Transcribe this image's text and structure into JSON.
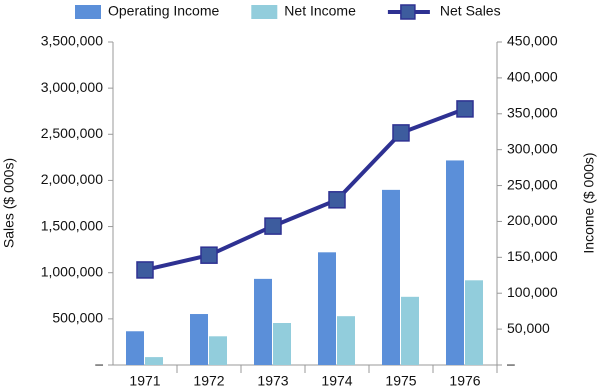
{
  "chart_data": {
    "type": "bar-line",
    "categories": [
      "1971",
      "1972",
      "1973",
      "1974",
      "1975",
      "1976"
    ],
    "series": [
      {
        "name": "Operating Income",
        "type": "bar",
        "color": "#5b8fd9",
        "axis": "y2",
        "values": [
          47000,
          71000,
          120000,
          157000,
          244000,
          285000
        ]
      },
      {
        "name": "Net Income",
        "type": "bar",
        "color": "#92cddc",
        "axis": "y2",
        "values": [
          11000,
          40000,
          58500,
          68000,
          95000,
          118000
        ]
      },
      {
        "name": "Net Sales",
        "type": "line",
        "color": "#2e3192",
        "marker_color": "#3d5c9e",
        "values": [
          1030000,
          1190000,
          1505000,
          1790000,
          2515000,
          2775000
        ]
      }
    ],
    "ylabel": "Sales ($ 000s)",
    "y2label": "Income ($ 000s)",
    "ylim": [
      0,
      3500000
    ],
    "yticks": [
      {
        "value": 0,
        "label": "–"
      },
      {
        "value": 500000,
        "label": "500,000"
      },
      {
        "value": 1000000,
        "label": "1,000,000"
      },
      {
        "value": 1500000,
        "label": "1,500,000"
      },
      {
        "value": 2000000,
        "label": "2,000,000"
      },
      {
        "value": 2500000,
        "label": "2,500,000"
      },
      {
        "value": 3000000,
        "label": "3,000,000"
      },
      {
        "value": 3500000,
        "label": "3,500,000"
      }
    ],
    "y2lim": [
      0,
      450000
    ],
    "y2ticks": [
      {
        "value": 0,
        "label": "–"
      },
      {
        "value": 50000,
        "label": "50,000"
      },
      {
        "value": 100000,
        "label": "100,000"
      },
      {
        "value": 150000,
        "label": "150,000"
      },
      {
        "value": 200000,
        "label": "200,000"
      },
      {
        "value": 250000,
        "label": "250,000"
      },
      {
        "value": 300000,
        "label": "300,000"
      },
      {
        "value": 350000,
        "label": "350,000"
      },
      {
        "value": 400000,
        "label": "400,000"
      },
      {
        "value": 450000,
        "label": "450,000"
      }
    ],
    "legend": "top"
  }
}
